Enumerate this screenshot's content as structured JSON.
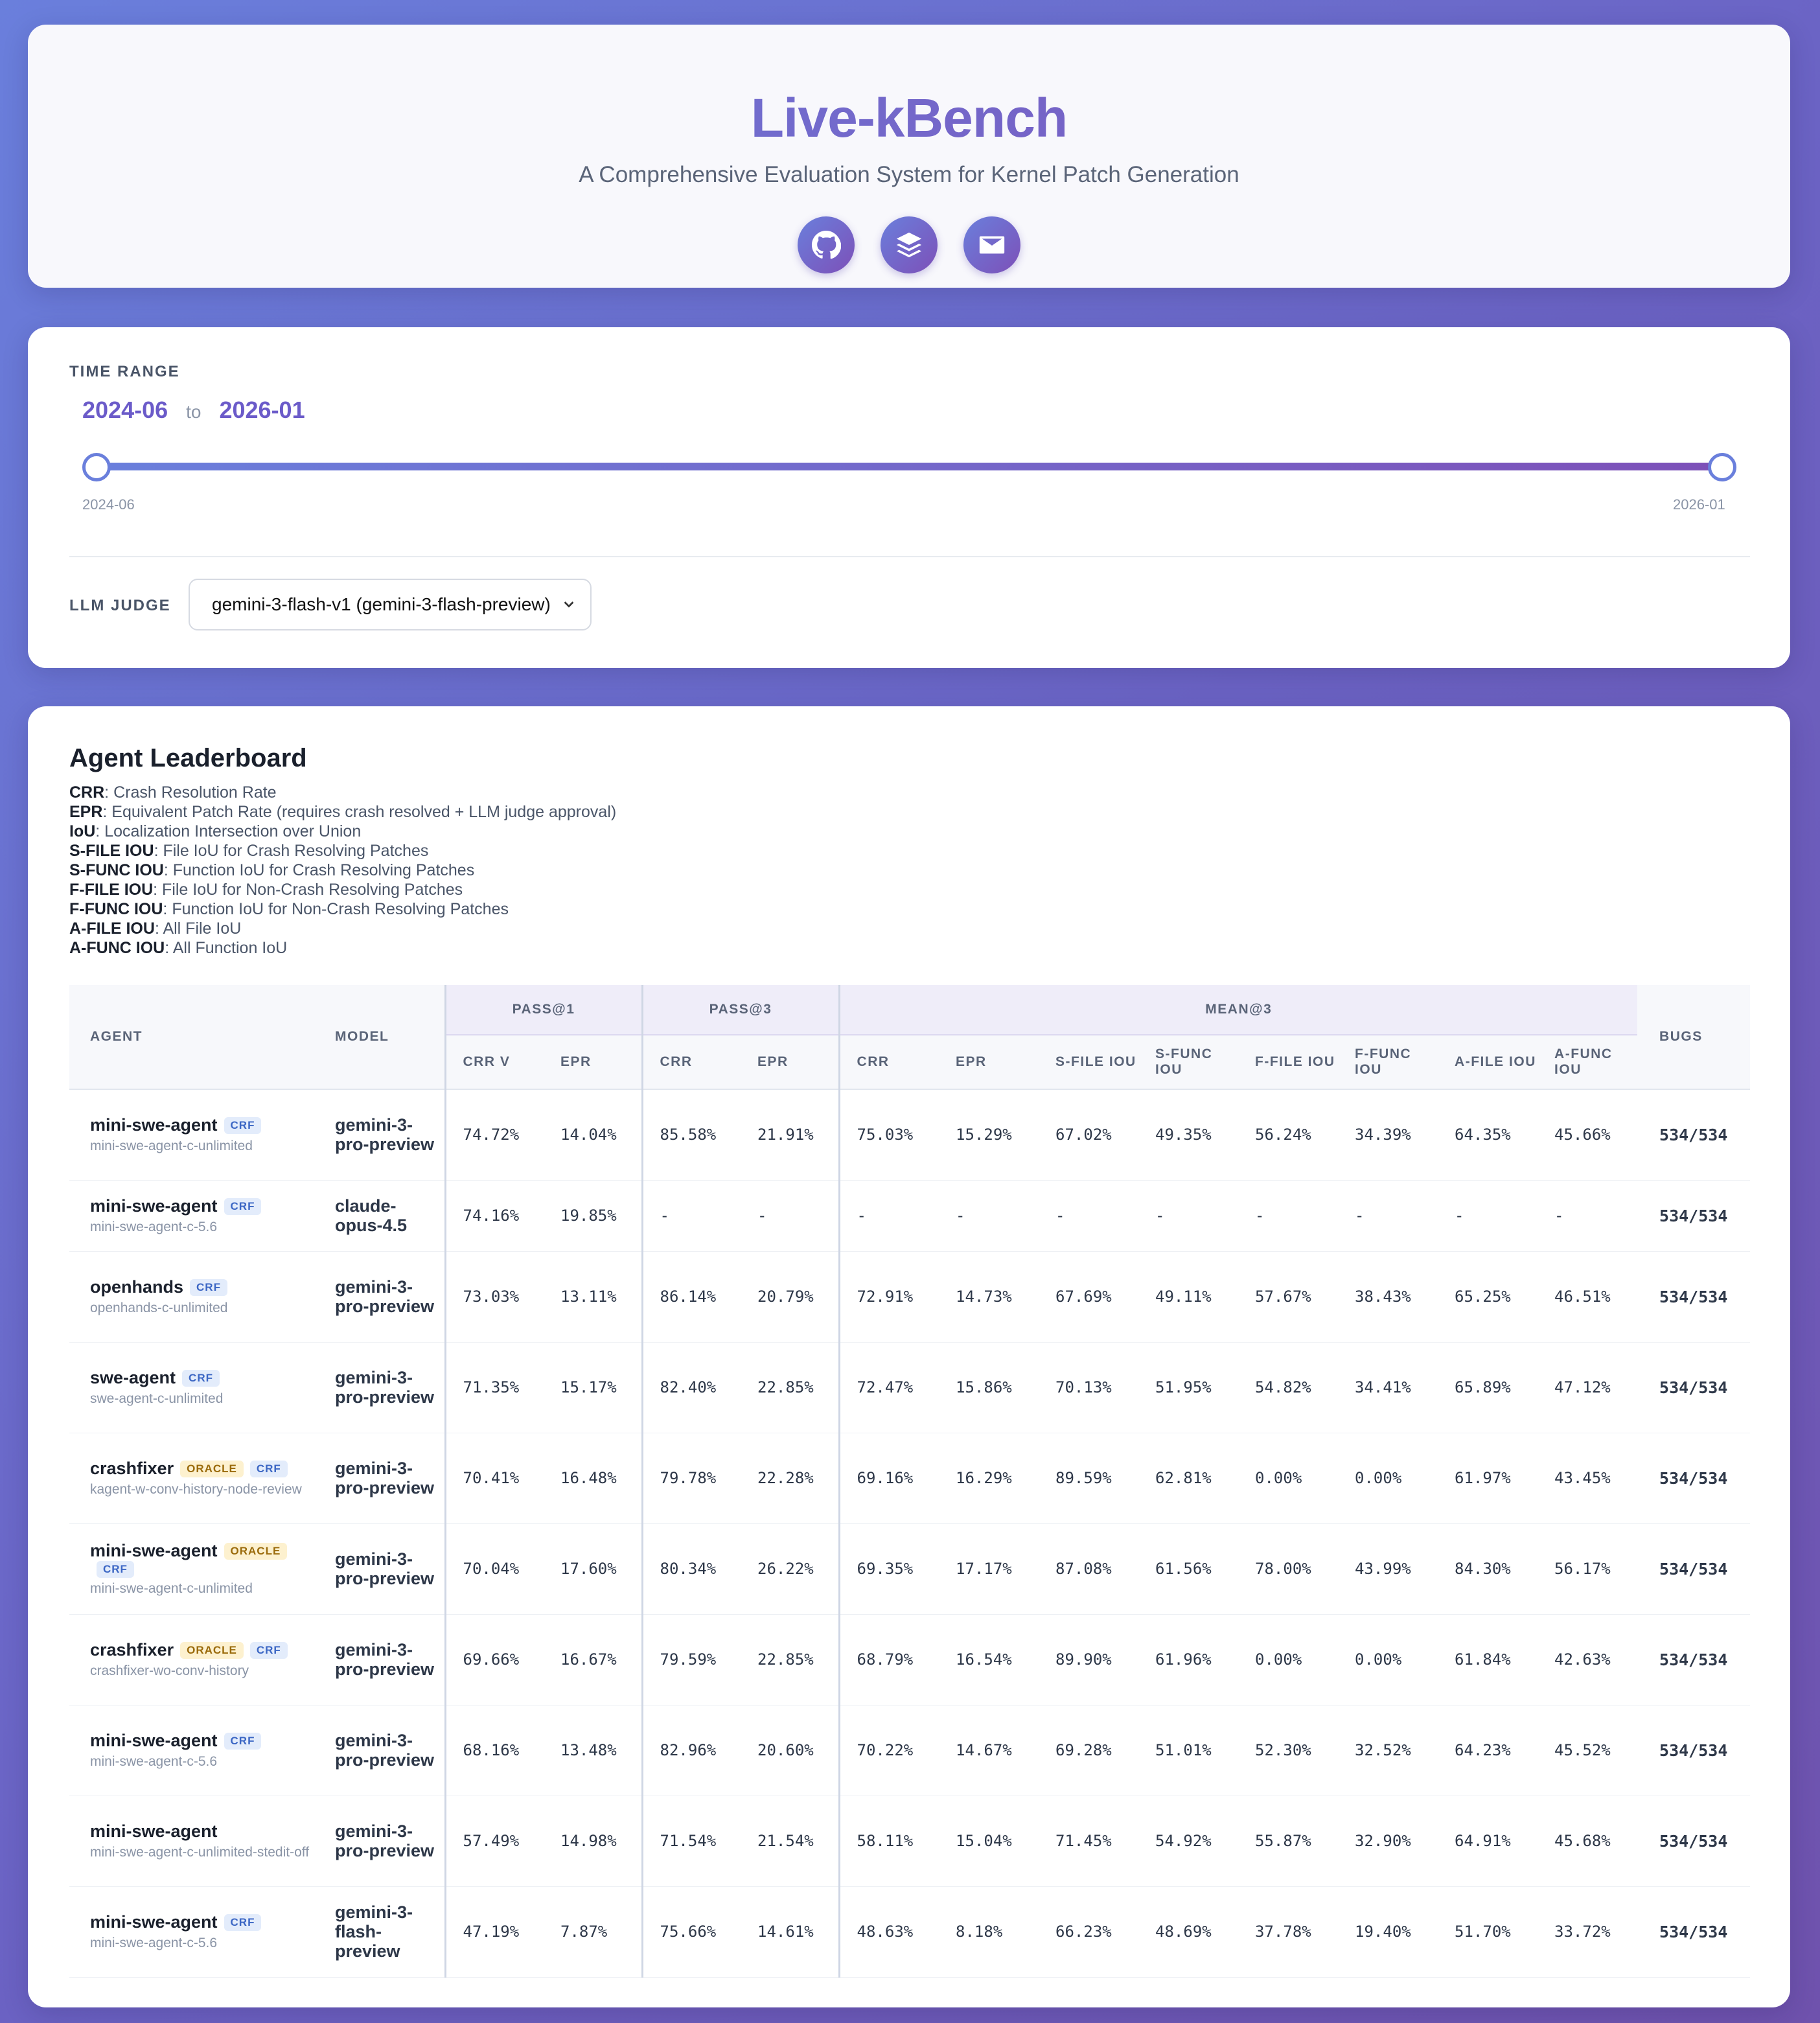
{
  "header": {
    "title": "Live-kBench",
    "subtitle": "A Comprehensive Evaluation System for Kernel Patch Generation",
    "icons": [
      "github-icon",
      "layers-icon",
      "mail-icon"
    ]
  },
  "filters": {
    "time_range_label": "TIME RANGE",
    "range_start": "2024-06",
    "range_to": "to",
    "range_end": "2026-01",
    "tick_min": "2024-06",
    "tick_max": "2026-01",
    "llm_judge_label": "LLM JUDGE",
    "llm_judge_value": "gemini-3-flash-v1 (gemini-3-flash-preview)"
  },
  "leaderboard": {
    "title": "Agent Leaderboard",
    "legend": [
      {
        "term": "CRR",
        "desc": ": Crash Resolution Rate"
      },
      {
        "term": "EPR",
        "desc": ": Equivalent Patch Rate (requires crash resolved + LLM judge approval)"
      },
      {
        "term": "IoU",
        "desc": ": Localization Intersection over Union"
      },
      {
        "term": "S-FILE IOU",
        "desc": ": File IoU for Crash Resolving Patches"
      },
      {
        "term": "S-FUNC IOU",
        "desc": ": Function IoU for Crash Resolving Patches"
      },
      {
        "term": "F-FILE IOU",
        "desc": ": File IoU for Non-Crash Resolving Patches"
      },
      {
        "term": "F-FUNC IOU",
        "desc": ": Function IoU for Non-Crash Resolving Patches"
      },
      {
        "term": "A-FILE IOU",
        "desc": ": All File IoU"
      },
      {
        "term": "A-FUNC IOU",
        "desc": ": All Function IoU"
      }
    ],
    "headers": {
      "agent": "AGENT",
      "model": "MODEL",
      "pass1": "PASS@1",
      "pass3": "PASS@3",
      "mean3": "MEAN@3",
      "bugs": "BUGS",
      "pass1_cols": [
        "CRR V",
        "EPR"
      ],
      "pass3_cols": [
        "CRR",
        "EPR"
      ],
      "mean3_cols": [
        "CRR",
        "EPR",
        "S-FILE IOU",
        "S-FUNC IOU",
        "F-FILE IOU",
        "F-FUNC IOU",
        "A-FILE IOU",
        "A-FUNC IOU"
      ]
    },
    "rows": [
      {
        "agent": "mini-swe-agent",
        "id": "mini-swe-agent-c-unlimited",
        "badges": [
          "CRF"
        ],
        "model": "gemini-3-pro-preview",
        "values": [
          "74.72%",
          "14.04%",
          "85.58%",
          "21.91%",
          "75.03%",
          "15.29%",
          "67.02%",
          "49.35%",
          "56.24%",
          "34.39%",
          "64.35%",
          "45.66%"
        ],
        "bugs": "534/534"
      },
      {
        "agent": "mini-swe-agent",
        "id": "mini-swe-agent-c-5.6",
        "badges": [
          "CRF"
        ],
        "model": "claude-opus-4.5",
        "values": [
          "74.16%",
          "19.85%",
          "-",
          "-",
          "-",
          "-",
          "-",
          "-",
          "-",
          "-",
          "-",
          "-"
        ],
        "bugs": "534/534"
      },
      {
        "agent": "openhands",
        "id": "openhands-c-unlimited",
        "badges": [
          "CRF"
        ],
        "model": "gemini-3-pro-preview",
        "values": [
          "73.03%",
          "13.11%",
          "86.14%",
          "20.79%",
          "72.91%",
          "14.73%",
          "67.69%",
          "49.11%",
          "57.67%",
          "38.43%",
          "65.25%",
          "46.51%"
        ],
        "bugs": "534/534"
      },
      {
        "agent": "swe-agent",
        "id": "swe-agent-c-unlimited",
        "badges": [
          "CRF"
        ],
        "model": "gemini-3-pro-preview",
        "values": [
          "71.35%",
          "15.17%",
          "82.40%",
          "22.85%",
          "72.47%",
          "15.86%",
          "70.13%",
          "51.95%",
          "54.82%",
          "34.41%",
          "65.89%",
          "47.12%"
        ],
        "bugs": "534/534"
      },
      {
        "agent": "crashfixer",
        "id": "kagent-w-conv-history-node-review",
        "badges": [
          "ORACLE",
          "CRF"
        ],
        "model": "gemini-3-pro-preview",
        "values": [
          "70.41%",
          "16.48%",
          "79.78%",
          "22.28%",
          "69.16%",
          "16.29%",
          "89.59%",
          "62.81%",
          "0.00%",
          "0.00%",
          "61.97%",
          "43.45%"
        ],
        "bugs": "534/534"
      },
      {
        "agent": "mini-swe-agent",
        "id": "mini-swe-agent-c-unlimited",
        "badges": [
          "ORACLE",
          "CRF"
        ],
        "model": "gemini-3-pro-preview",
        "values": [
          "70.04%",
          "17.60%",
          "80.34%",
          "26.22%",
          "69.35%",
          "17.17%",
          "87.08%",
          "61.56%",
          "78.00%",
          "43.99%",
          "84.30%",
          "56.17%"
        ],
        "bugs": "534/534"
      },
      {
        "agent": "crashfixer",
        "id": "crashfixer-wo-conv-history",
        "badges": [
          "ORACLE",
          "CRF"
        ],
        "model": "gemini-3-pro-preview",
        "values": [
          "69.66%",
          "16.67%",
          "79.59%",
          "22.85%",
          "68.79%",
          "16.54%",
          "89.90%",
          "61.96%",
          "0.00%",
          "0.00%",
          "61.84%",
          "42.63%"
        ],
        "bugs": "534/534"
      },
      {
        "agent": "mini-swe-agent",
        "id": "mini-swe-agent-c-5.6",
        "badges": [
          "CRF"
        ],
        "model": "gemini-3-pro-preview",
        "values": [
          "68.16%",
          "13.48%",
          "82.96%",
          "20.60%",
          "70.22%",
          "14.67%",
          "69.28%",
          "51.01%",
          "52.30%",
          "32.52%",
          "64.23%",
          "45.52%"
        ],
        "bugs": "534/534"
      },
      {
        "agent": "mini-swe-agent",
        "id": "mini-swe-agent-c-unlimited-stedit-off",
        "badges": [],
        "model": "gemini-3-pro-preview",
        "values": [
          "57.49%",
          "14.98%",
          "71.54%",
          "21.54%",
          "58.11%",
          "15.04%",
          "71.45%",
          "54.92%",
          "55.87%",
          "32.90%",
          "64.91%",
          "45.68%"
        ],
        "bugs": "534/534"
      },
      {
        "agent": "mini-swe-agent",
        "id": "mini-swe-agent-c-5.6",
        "badges": [
          "CRF"
        ],
        "model": "gemini-3-flash-preview",
        "values": [
          "47.19%",
          "7.87%",
          "75.66%",
          "14.61%",
          "48.63%",
          "8.18%",
          "66.23%",
          "48.69%",
          "37.78%",
          "19.40%",
          "51.70%",
          "33.72%"
        ],
        "bugs": "534/534"
      }
    ]
  }
}
